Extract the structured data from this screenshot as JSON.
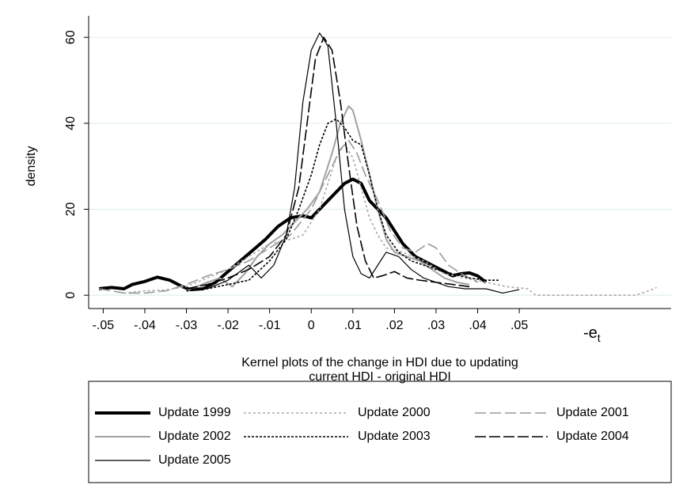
{
  "chart_data": {
    "type": "line",
    "y_label": "density",
    "x_label_lines": [
      "Kernel plots of the change in HDI due to updating",
      "current HDI - original HDI"
    ],
    "x_symbol": {
      "main": "-e",
      "sub": "t"
    },
    "xlim": [
      -0.0535,
      0.0865
    ],
    "ylim": [
      -3.1,
      65
    ],
    "xticks": [
      {
        "value": -0.05,
        "label": "-.05"
      },
      {
        "value": -0.04,
        "label": "-.04"
      },
      {
        "value": -0.03,
        "label": "-.03"
      },
      {
        "value": -0.02,
        "label": "-.02"
      },
      {
        "value": -0.01,
        "label": "-.01"
      },
      0,
      {
        "value": 0.01,
        "label": ".01"
      },
      {
        "value": 0.02,
        "label": ".02"
      },
      {
        "value": 0.03,
        "label": ".03"
      },
      {
        "value": 0.04,
        "label": ".04"
      },
      {
        "value": 0.05,
        "label": ".05"
      }
    ],
    "yticks": [
      0,
      20,
      40,
      60
    ],
    "grid": true,
    "series": [
      {
        "name": "Update 1999",
        "color": "#000000",
        "width": 4,
        "dash": "none",
        "x": [
          -0.051,
          -0.048,
          -0.045,
          -0.043,
          -0.04,
          -0.037,
          -0.034,
          -0.031,
          -0.029,
          -0.026,
          -0.023,
          -0.02,
          -0.017,
          -0.014,
          -0.011,
          -0.008,
          -0.005,
          -0.002,
          0,
          0.002,
          0.004,
          0.006,
          0.008,
          0.01,
          0.012,
          0.014,
          0.016,
          0.018,
          0.02,
          0.022,
          0.025,
          0.028,
          0.031,
          0.034,
          0.036,
          0.038,
          0.04,
          0.042
        ],
        "values": [
          1.5,
          1.8,
          1.5,
          2.5,
          3.2,
          4.2,
          3.5,
          2,
          1.3,
          1.5,
          3,
          5.5,
          8,
          10.5,
          13,
          16,
          18,
          18.5,
          18,
          20,
          22,
          24,
          26,
          27,
          26,
          22,
          20,
          18,
          15,
          12,
          9,
          7.5,
          6,
          4.5,
          5,
          5.2,
          4.5,
          3
        ]
      },
      {
        "name": "Update 2000",
        "color": "#a8a8a8",
        "width": 1.6,
        "dash": "3,3",
        "x": [
          -0.045,
          -0.04,
          -0.035,
          -0.03,
          -0.025,
          -0.02,
          -0.015,
          -0.01,
          -0.005,
          -0.002,
          0,
          0.002,
          0.004,
          0.006,
          0.008,
          0.01,
          0.012,
          0.014,
          0.016,
          0.018,
          0.022,
          0.027,
          0.032,
          0.037,
          0.042,
          0.047,
          0.052,
          0.054,
          0.06,
          0.07,
          0.078,
          0.081,
          0.083
        ],
        "values": [
          0.5,
          1,
          1.2,
          2,
          4,
          6,
          9,
          12,
          13,
          14,
          17,
          20,
          26,
          32,
          35,
          32,
          25,
          18,
          14,
          11,
          10,
          8,
          5,
          4,
          3,
          2,
          1.5,
          0,
          0,
          0,
          0,
          1,
          1.8
        ]
      },
      {
        "name": "Update 2001",
        "color": "#999999",
        "width": 1.6,
        "dash": "14,5",
        "x": [
          -0.051,
          -0.045,
          -0.04,
          -0.035,
          -0.03,
          -0.025,
          -0.02,
          -0.015,
          -0.01,
          -0.005,
          0,
          0.004,
          0.007,
          0.009,
          0.011,
          0.013,
          0.016,
          0.019,
          0.022,
          0.025,
          0.028,
          0.03,
          0.033,
          0.036,
          0.04
        ],
        "values": [
          1.5,
          0.5,
          0.5,
          1,
          2.5,
          4.5,
          6,
          8,
          11,
          14,
          20,
          28,
          34,
          36,
          33,
          28,
          22,
          15,
          11,
          10,
          12,
          11,
          7,
          5,
          3
        ]
      },
      {
        "name": "Update 2002",
        "color": "#a0a0a0",
        "width": 2,
        "dash": "none",
        "x": [
          -0.03,
          -0.025,
          -0.022,
          -0.019,
          -0.016,
          -0.013,
          -0.01,
          -0.007,
          -0.004,
          -0.001,
          0.002,
          0.005,
          0.007,
          0.009,
          0.01,
          0.012,
          0.014,
          0.016,
          0.018,
          0.02,
          0.023,
          0.026,
          0.029,
          0.032,
          0.035,
          0.038
        ],
        "values": [
          1,
          3,
          4,
          2,
          5,
          9,
          12,
          14,
          17,
          20,
          24,
          33,
          40,
          44,
          43,
          36,
          28,
          20,
          13,
          10,
          9,
          8,
          6,
          4,
          3,
          2.5
        ]
      },
      {
        "name": "Update 2003",
        "color": "#000000",
        "width": 1.6,
        "dash": "3,2",
        "x": [
          -0.03,
          -0.025,
          -0.02,
          -0.015,
          -0.01,
          -0.006,
          -0.003,
          0,
          0.002,
          0.004,
          0.006,
          0.008,
          0.01,
          0.012,
          0.014,
          0.016,
          0.018,
          0.021,
          0.024,
          0.027,
          0.03,
          0.034,
          0.038,
          0.042,
          0.045
        ],
        "values": [
          1,
          1.5,
          2.5,
          3.5,
          8,
          13,
          20,
          28,
          35,
          40,
          41,
          39,
          36,
          35,
          28,
          20,
          14,
          10,
          8,
          7,
          6,
          5,
          4,
          3.5,
          3.5
        ]
      },
      {
        "name": "Update 2004",
        "color": "#000000",
        "width": 1.6,
        "dash": "14,4",
        "x": [
          -0.03,
          -0.025,
          -0.02,
          -0.015,
          -0.01,
          -0.006,
          -0.003,
          -0.001,
          0.001,
          0.003,
          0.005,
          0.007,
          0.009,
          0.011,
          0.013,
          0.015,
          0.017,
          0.02,
          0.023,
          0.026,
          0.03,
          0.034,
          0.038
        ],
        "values": [
          1.5,
          2.5,
          4,
          6,
          9,
          14,
          25,
          40,
          55,
          60,
          57,
          45,
          30,
          16,
          8,
          4,
          4.5,
          5.5,
          4,
          3.5,
          3,
          2.5,
          2
        ]
      },
      {
        "name": "Update 2005",
        "color": "#000000",
        "width": 1.2,
        "dash": "none",
        "x": [
          -0.03,
          -0.025,
          -0.02,
          -0.015,
          -0.012,
          -0.009,
          -0.006,
          -0.004,
          -0.002,
          0,
          0.002,
          0.004,
          0.006,
          0.008,
          0.01,
          0.012,
          0.014,
          0.016,
          0.018,
          0.021,
          0.024,
          0.027,
          0.03,
          0.033,
          0.037,
          0.042,
          0.046,
          0.05
        ],
        "values": [
          1.5,
          1.5,
          3.5,
          7,
          4,
          7,
          14,
          25,
          45,
          57,
          61,
          58,
          40,
          20,
          9,
          5,
          4,
          7,
          10,
          9,
          6,
          4,
          3,
          2,
          1.5,
          1.5,
          0.5,
          1.3
        ]
      }
    ]
  }
}
